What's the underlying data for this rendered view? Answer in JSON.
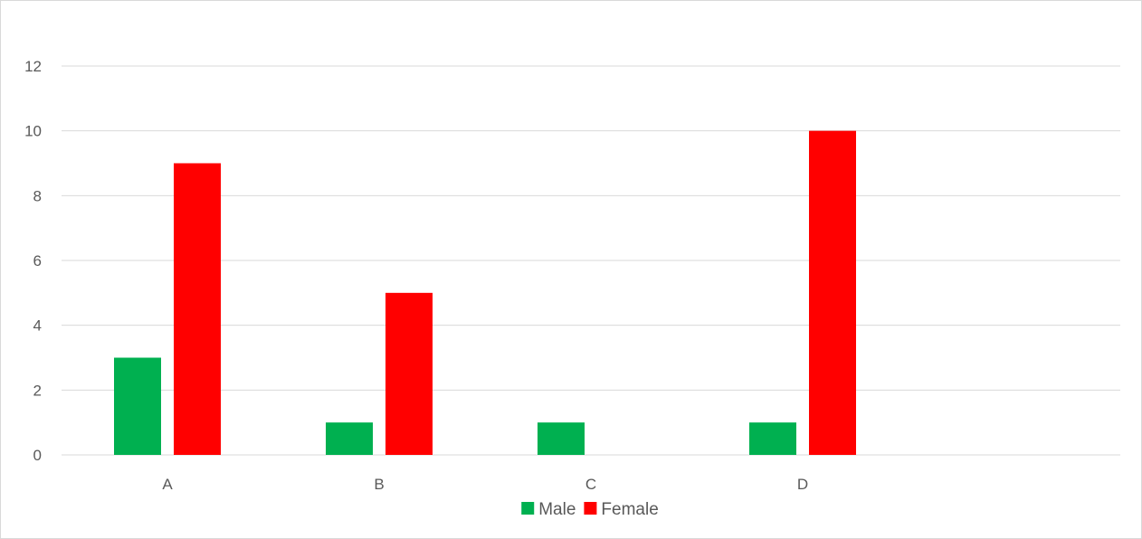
{
  "chart_data": {
    "type": "bar",
    "categories": [
      "A",
      "B",
      "C",
      "D",
      ""
    ],
    "series": [
      {
        "name": "Male",
        "color": "#00b050",
        "values": [
          3,
          1,
          1,
          1,
          0
        ]
      },
      {
        "name": "Female",
        "color": "#ff0000",
        "values": [
          9,
          5,
          0,
          10,
          0
        ]
      }
    ],
    "ylim": [
      0,
      12
    ],
    "yticks": [
      0,
      2,
      4,
      6,
      8,
      10,
      12
    ],
    "grid": true,
    "legend": "bottom",
    "title": "",
    "xlabel": "",
    "ylabel": ""
  }
}
